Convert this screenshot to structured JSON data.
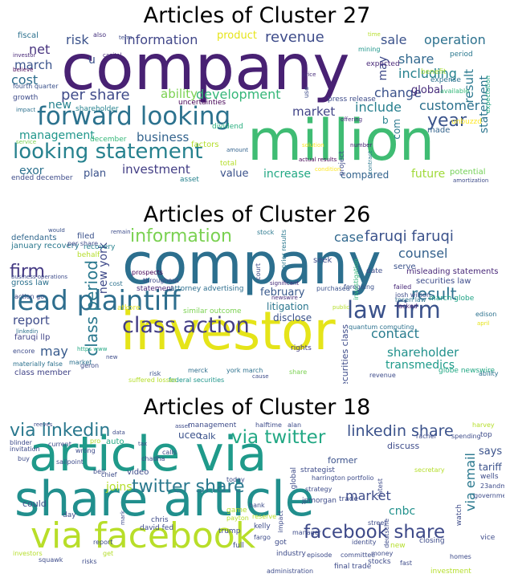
{
  "clouds": [
    {
      "title": "Articles of Cluster 27",
      "words": [
        "company",
        "million",
        "forward looking",
        "looking statement",
        "year",
        "revenue",
        "information",
        "operation",
        "sale",
        "share",
        "risk",
        "net",
        "per share",
        "ability",
        "development",
        "market",
        "change",
        "including",
        "result",
        "customer",
        "include",
        "global",
        "statement",
        "cost",
        "march",
        "new",
        "management",
        "business",
        "investment",
        "exor",
        "plan",
        "value",
        "increase",
        "compared",
        "future",
        "potential",
        "u",
        "b",
        "com",
        "may",
        "product",
        "fiscal",
        "dividend",
        "december",
        "ended december",
        "factors",
        "shareholder",
        "expense",
        "benefit",
        "total",
        "asset",
        "unbuzzd",
        "made",
        "expected",
        "also",
        "growth",
        "capital",
        "price",
        "fourth quarter",
        "press release",
        "uncertainties",
        "period",
        "project",
        "service",
        "investor",
        "actual results",
        "condition",
        "number",
        "expectation",
        "amortization",
        "impact",
        "offering",
        "solution",
        "available",
        "mining",
        "use",
        "amount",
        "contract",
        "believe",
        "time",
        "term"
      ]
    },
    {
      "title": "Articles of Cluster 26",
      "words": [
        "company",
        "investor",
        "lead plaintiff",
        "class action",
        "law firm",
        "firm",
        "information",
        "faruqi faruqi",
        "result",
        "class period",
        "case",
        "counsel",
        "new york",
        "report",
        "may",
        "contact",
        "shareholder",
        "transmedics",
        "february",
        "litigation",
        "disclose",
        "securities law",
        "misleading statements",
        "march globe",
        "gross law",
        "faruqi llp",
        "class member",
        "defendants",
        "filed",
        "january recovery",
        "behalf",
        "business operations",
        "recovery",
        "rights",
        "statement",
        "attorney advertising",
        "similar outcome",
        "merck",
        "risk",
        "federal securities",
        "suffered losses",
        "materially false",
        "york march",
        "seek",
        "serve",
        "purchased",
        "foregoing",
        "quantum computing",
        "edison",
        "globe newswire",
        "revenue",
        "ability",
        "court",
        "prior results",
        "securities class",
        "date",
        "josh wilson",
        "failed",
        "rosen law",
        "investigation",
        "lacked",
        "share",
        "stock",
        "prospects",
        "throughout",
        "atkore",
        "encore",
        "geron",
        "would",
        "linkedin",
        "remain",
        "per share",
        "action go",
        "cost",
        "april",
        "https www",
        "market",
        "new",
        "cause",
        "significant",
        "newswire",
        "public",
        "note"
      ]
    },
    {
      "title": "Articles of Cluster 18",
      "words": [
        "article via",
        "share article",
        "via facebook",
        "via linkedin",
        "via twitter",
        "twitter share",
        "linkedin share",
        "facebook share",
        "via email",
        "market",
        "cnbc",
        "says",
        "tariff",
        "joins",
        "former",
        "discuss",
        "could",
        "video",
        "chief",
        "uceo",
        "talk",
        "auto",
        "management",
        "halftime",
        "alan",
        "reeves",
        "buy",
        "invitation",
        "blinder",
        "current",
        "day",
        "mark",
        "chris",
        "david fed",
        "kelly",
        "trump",
        "full",
        "got",
        "impact",
        "industry",
        "investors",
        "risks",
        "squawk",
        "report",
        "get",
        "bell",
        "pro",
        "wells",
        "stocks",
        "closing",
        "vice",
        "top",
        "watch",
        "new",
        "committee",
        "money",
        "final trade",
        "administration",
        "episode",
        "fast",
        "investment",
        "game",
        "harrington",
        "trade",
        "street",
        "strategist",
        "portfolio",
        "strategy",
        "global",
        "jpmorgan",
        "bank",
        "fargo",
        "payton",
        "reserve",
        "manager",
        "identity",
        "homes",
        "spending",
        "rachel",
        "harvey",
        "23andme",
        "government",
        "secretary",
        "deutsche",
        "latest",
        "today",
        "chadha",
        "calls",
        "asset",
        "data",
        "tax",
        "wrong",
        "sailpoint"
      ]
    }
  ]
}
